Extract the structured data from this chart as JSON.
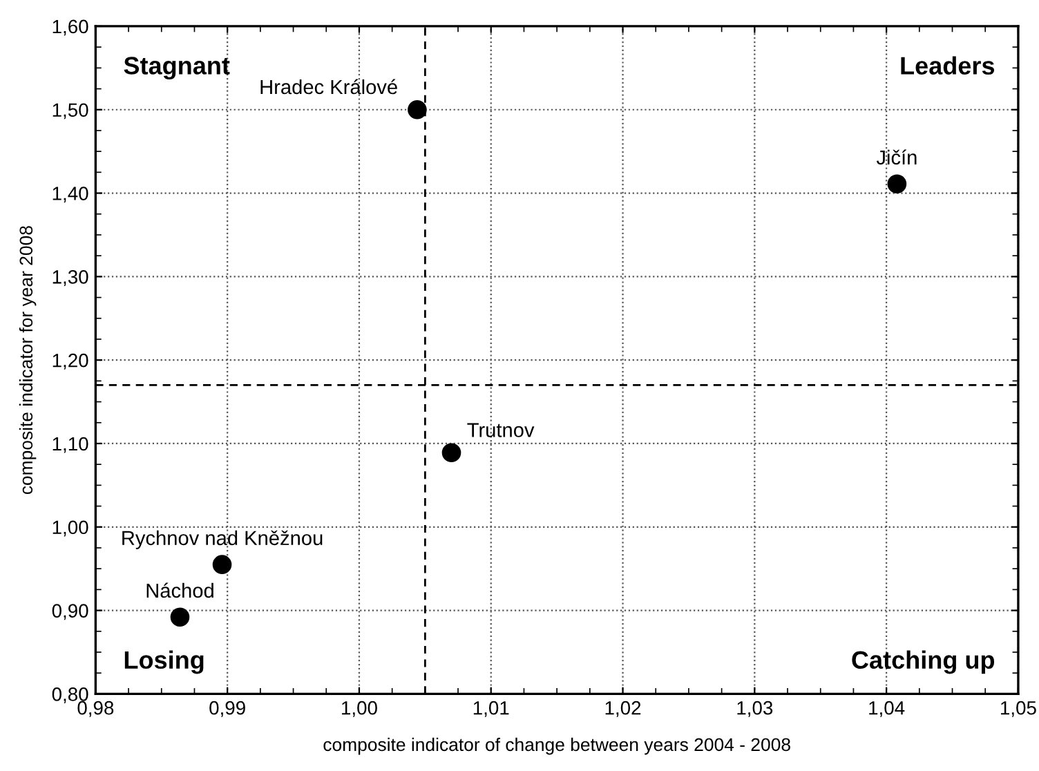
{
  "chart_data": {
    "type": "scatter",
    "xlabel": "composite indicator of change between years 2004 - 2008",
    "ylabel": "composite indicator for year 2008",
    "series": [
      {
        "color": "#000000",
        "x": [
          1.0044,
          1.0408,
          1.007,
          0.9896,
          0.9864
        ],
        "values": [
          1.5,
          1.411,
          1.089,
          0.955,
          0.892
        ]
      }
    ],
    "marker": "circle",
    "grid": true,
    "xlim": [
      0.98,
      1.05
    ],
    "xticks": [
      {
        "value": 0.98,
        "label": "0,98"
      },
      {
        "value": 0.99,
        "label": "0,99"
      },
      {
        "value": 1.0,
        "label": "1,00"
      },
      {
        "value": 1.01,
        "label": "1,01"
      },
      {
        "value": 1.02,
        "label": "1,02"
      },
      {
        "value": 1.03,
        "label": "1,03"
      },
      {
        "value": 1.04,
        "label": "1,04"
      },
      {
        "value": 1.05,
        "label": "1,05"
      }
    ],
    "ylim": [
      0.8,
      1.6
    ],
    "yticks": [
      {
        "value": 0.8,
        "label": "0,80"
      },
      {
        "value": 0.9,
        "label": "0,90"
      },
      {
        "value": 1.0,
        "label": "1,00"
      },
      {
        "value": 1.1,
        "label": "1,10"
      },
      {
        "value": 1.2,
        "label": "1,20"
      },
      {
        "value": 1.3,
        "label": "1,30"
      },
      {
        "value": 1.4,
        "label": "1,40"
      },
      {
        "value": 1.5,
        "label": "1,50"
      },
      {
        "value": 1.6,
        "label": "1,60"
      }
    ],
    "ref_lines": [
      {
        "axis": "x",
        "value": 1.005,
        "color": "#000000",
        "line_style": "dashed"
      },
      {
        "axis": "y",
        "value": 1.17,
        "color": "#000000",
        "line_style": "dashed"
      }
    ],
    "annotations": [
      {
        "text": "Hradec Králové",
        "x": 1.0044,
        "y": 1.5
      },
      {
        "text": "Jičín",
        "x": 1.0408,
        "y": 1.411
      },
      {
        "text": "Trutnov",
        "x": 1.007,
        "y": 1.089
      },
      {
        "text": "Rychnov nad Kněžnou",
        "x": 0.9896,
        "y": 0.955
      },
      {
        "text": "Náchod",
        "x": 0.9864,
        "y": 0.892
      },
      "Stagnant",
      "Leaders",
      "Losing",
      "Catching up"
    ]
  }
}
